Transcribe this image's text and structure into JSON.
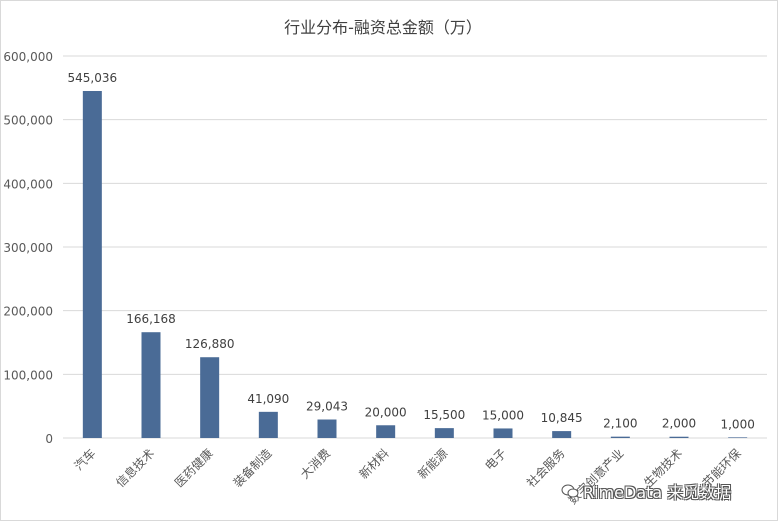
{
  "chart_data": {
    "type": "bar",
    "title": "行业分布-融资总金额（万）",
    "categories": [
      "汽车",
      "信息技术",
      "医药健康",
      "装备制造",
      "大消费",
      "新材料",
      "新能源",
      "电子",
      "社会服务",
      "数字创意产业",
      "生物技术",
      "节能环保"
    ],
    "values": [
      545036,
      166168,
      126880,
      41090,
      29043,
      20000,
      15500,
      15000,
      10845,
      2100,
      2000,
      1000
    ],
    "data_labels": [
      "545,036",
      "166,168",
      "126,880",
      "41,090",
      "29,043",
      "20,000",
      "15,500",
      "15,000",
      "10,845",
      "2,100",
      "2,000",
      "1,000"
    ],
    "ylim": [
      0,
      600000
    ],
    "yticks": [
      0,
      100000,
      200000,
      300000,
      400000,
      500000,
      600000
    ],
    "ytick_labels": [
      "0",
      "100,000",
      "200,000",
      "300,000",
      "400,000",
      "500,000",
      "600,000"
    ],
    "grid": true,
    "bar_color": "#4a6b96",
    "grid_color": "#d9d9d9"
  },
  "watermark": {
    "text": "RimeData 来觅数据",
    "icon": "wechat-icon"
  }
}
